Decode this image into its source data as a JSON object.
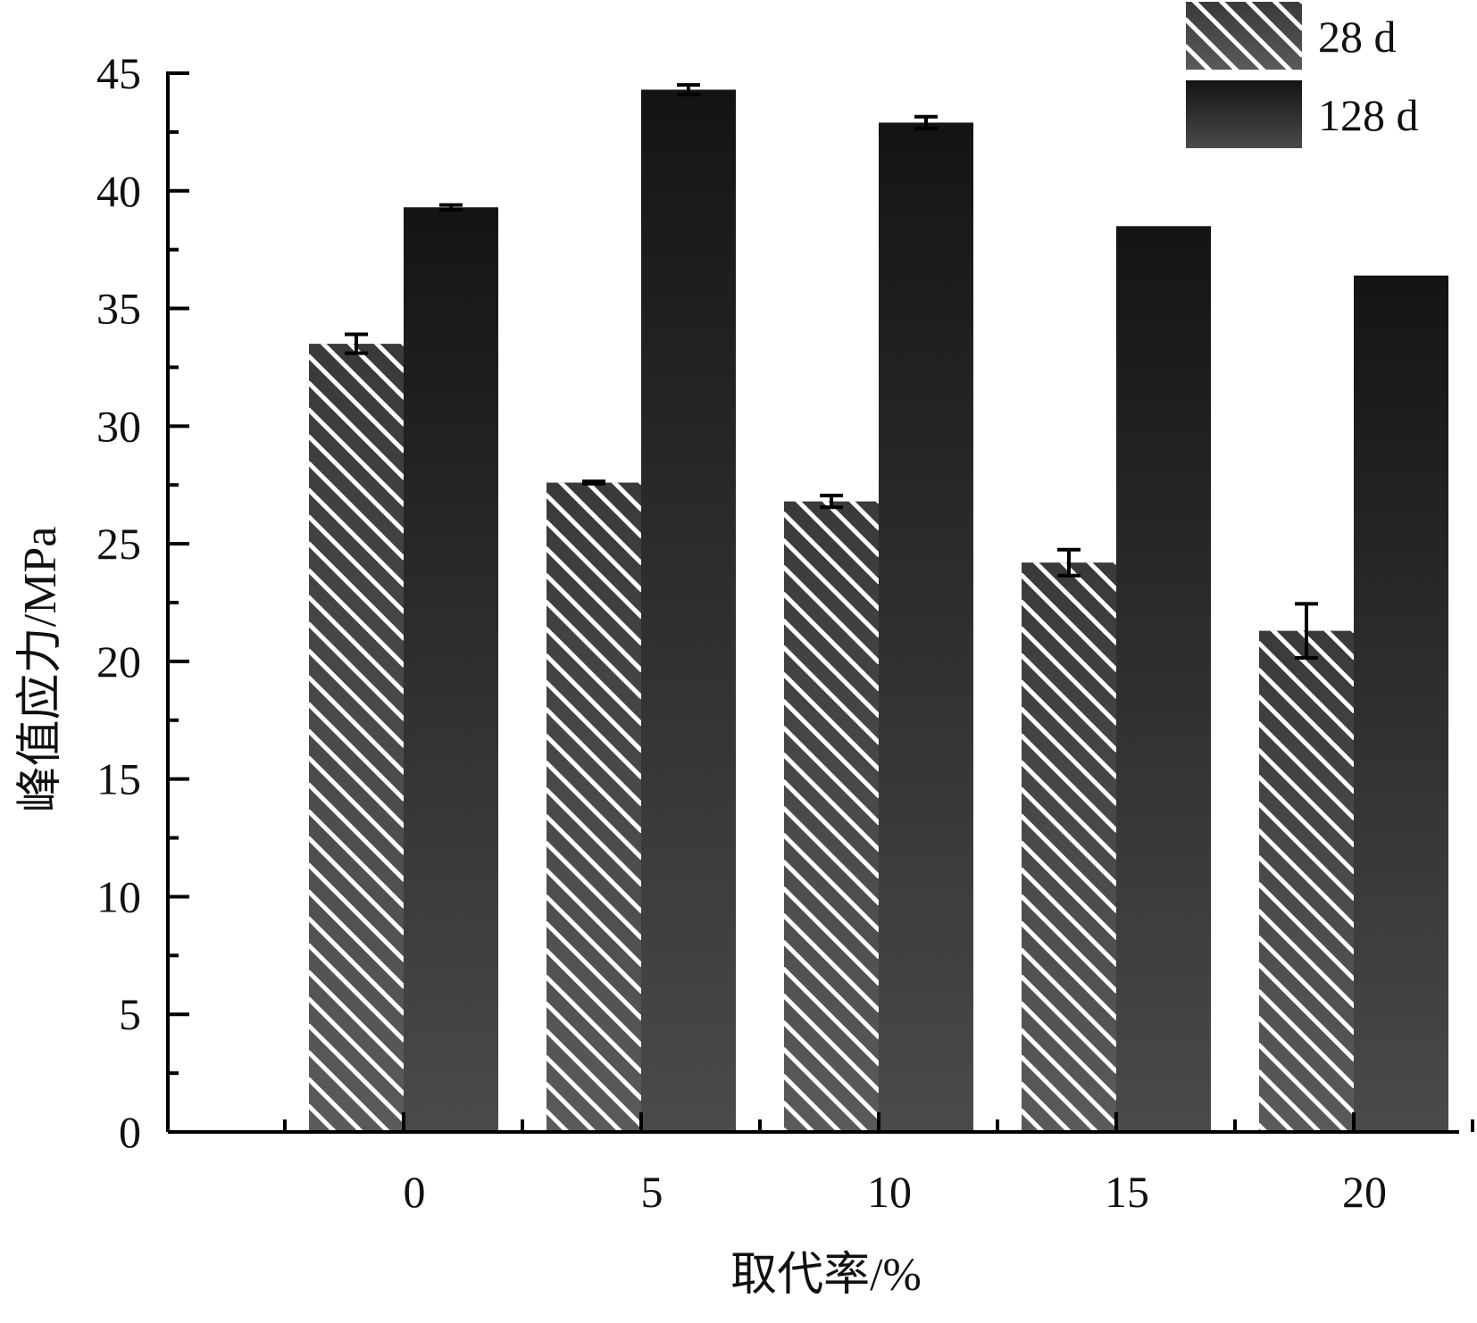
{
  "chart_data": {
    "type": "bar",
    "categories": [
      "0",
      "5",
      "10",
      "15",
      "20"
    ],
    "series": [
      {
        "name": "28 d",
        "values": [
          33.5,
          27.6,
          26.8,
          24.2,
          21.3
        ],
        "errors": [
          0.4,
          0.05,
          0.25,
          0.55,
          1.15
        ],
        "pattern": "diagonal-hatch",
        "color": "#4a4a4a"
      },
      {
        "name": "128 d",
        "values": [
          39.3,
          44.3,
          42.9,
          38.5,
          36.4
        ],
        "errors": [
          0.1,
          0.2,
          0.25,
          0,
          0
        ],
        "pattern": "solid-gradient",
        "color": "#1a1a1a"
      }
    ],
    "xlabel": "取代率/%",
    "ylabel": "峰值应力/MPa",
    "ylim": [
      0,
      45
    ],
    "yticks": [
      "0",
      "5",
      "10",
      "15",
      "20",
      "25",
      "30",
      "35",
      "40",
      "45"
    ],
    "grid": false,
    "legend_position": "top-right"
  }
}
